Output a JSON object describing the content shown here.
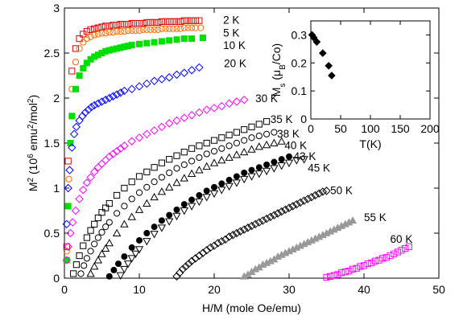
{
  "chart_data": [
    {
      "type": "scatter",
      "xlabel": "H/M (mole Oe/emu)",
      "ylabel_main": "M",
      "ylabel_sup": "2",
      "ylabel_units": " (10",
      "ylabel_units_sup": "6",
      "ylabel_units_tail": " emu",
      "ylabel_units_sup2": "2",
      "ylabel_units_tail2": "/mol",
      "ylabel_units_sup3": "2",
      "ylabel_units_close": ")",
      "xlim": [
        0,
        50
      ],
      "ylim": [
        0,
        3
      ],
      "xticks": [
        0,
        10,
        20,
        30,
        40,
        50
      ],
      "yticks": [
        0,
        0.5,
        1,
        1.5,
        2,
        2.5,
        3
      ],
      "xtick_labels": [
        "0",
        "10",
        "20",
        "30",
        "40",
        "50"
      ],
      "ytick_labels": [
        "0",
        "0.5",
        "1",
        "1.5",
        "2",
        "2.5",
        "3"
      ],
      "series": [
        {
          "name": "2 K",
          "marker": "square-open",
          "color": "#e00000",
          "x": [
            0.3,
            0.5,
            1.0,
            1.5,
            2.0,
            2.5,
            3.0,
            3.5,
            4.0,
            4.5,
            5.0,
            5.5,
            6.0,
            6.5,
            7.0,
            7.5,
            8.0,
            8.5,
            9.0,
            9.5,
            10.0,
            10.5,
            11.0,
            11.5,
            12.0,
            12.5,
            13.0,
            13.5,
            14.0,
            14.5,
            15.0,
            15.5,
            16.0,
            16.5,
            17.0,
            17.5,
            18.0
          ],
          "y": [
            0.35,
            1.3,
            2.3,
            2.55,
            2.66,
            2.71,
            2.74,
            2.76,
            2.77,
            2.78,
            2.79,
            2.8,
            2.8,
            2.81,
            2.81,
            2.82,
            2.82,
            2.82,
            2.83,
            2.83,
            2.83,
            2.83,
            2.84,
            2.84,
            2.84,
            2.84,
            2.85,
            2.85,
            2.85,
            2.85,
            2.85,
            2.85,
            2.86,
            2.86,
            2.86,
            2.86,
            2.86
          ]
        },
        {
          "name": "5 K",
          "marker": "circle-open",
          "color": "#ff6a00",
          "x": [
            0.3,
            0.6,
            1.0,
            1.5,
            2.0,
            2.5,
            3.0,
            3.5,
            4.0,
            4.5,
            5.0,
            5.5,
            6.0,
            6.5,
            7.0,
            7.5,
            8.0,
            8.5,
            9.0,
            9.5,
            10.0,
            10.5,
            11.0,
            11.5,
            12.0,
            12.5,
            13.0,
            13.5,
            14.0,
            14.5,
            15.0,
            15.5,
            16.0,
            16.5,
            17.0,
            17.5,
            18.2
          ],
          "y": [
            0.3,
            1.1,
            2.1,
            2.4,
            2.55,
            2.62,
            2.66,
            2.68,
            2.7,
            2.71,
            2.72,
            2.72,
            2.73,
            2.73,
            2.74,
            2.74,
            2.74,
            2.75,
            2.75,
            2.75,
            2.75,
            2.76,
            2.76,
            2.76,
            2.76,
            2.76,
            2.77,
            2.77,
            2.77,
            2.77,
            2.77,
            2.77,
            2.78,
            2.78,
            2.78,
            2.78,
            2.78
          ]
        },
        {
          "name": "10 K",
          "marker": "square-filled",
          "color": "#00e000",
          "x": [
            0.3,
            0.5,
            0.8,
            1.0,
            1.5,
            2.0,
            2.5,
            3.0,
            3.5,
            4.0,
            4.5,
            5.0,
            5.5,
            6.0,
            6.5,
            7.0,
            7.5,
            8.0,
            8.5,
            9.0,
            10.0,
            11.0,
            12.0,
            13.0,
            14.0,
            15.0,
            16.0,
            17.0,
            18.5
          ],
          "y": [
            0.2,
            0.8,
            1.5,
            1.8,
            2.1,
            2.25,
            2.33,
            2.39,
            2.43,
            2.46,
            2.48,
            2.5,
            2.52,
            2.53,
            2.54,
            2.55,
            2.56,
            2.57,
            2.58,
            2.59,
            2.6,
            2.61,
            2.62,
            2.63,
            2.64,
            2.65,
            2.66,
            2.66,
            2.67
          ]
        },
        {
          "name": "20 K",
          "marker": "diamond-open",
          "color": "#0000ff",
          "x": [
            0.3,
            0.5,
            0.7,
            1.0,
            1.3,
            1.6,
            2.0,
            2.4,
            2.8,
            3.2,
            3.6,
            4.0,
            4.5,
            5.0,
            5.5,
            6.0,
            6.5,
            7.0,
            7.5,
            8.0,
            9.0,
            10.0,
            11.0,
            12.0,
            13.0,
            14.0,
            15.0,
            16.0,
            17.0,
            18.0
          ],
          "y": [
            0.6,
            1.0,
            1.2,
            1.45,
            1.6,
            1.68,
            1.75,
            1.8,
            1.84,
            1.87,
            1.9,
            1.92,
            1.94,
            1.96,
            1.98,
            2.0,
            2.02,
            2.04,
            2.06,
            2.08,
            2.1,
            2.13,
            2.16,
            2.19,
            2.21,
            2.23,
            2.26,
            2.28,
            2.31,
            2.34
          ]
        },
        {
          "name": "30 K",
          "marker": "diamond-open",
          "color": "#ff00ff",
          "x": [
            0.3,
            0.5,
            0.8,
            1.1,
            1.5,
            2.0,
            2.5,
            3.0,
            3.5,
            4.0,
            4.5,
            5.0,
            5.5,
            6.0,
            6.5,
            7.0,
            7.5,
            8.0,
            9.0,
            10.0,
            11.0,
            12.0,
            13.0,
            14.0,
            15.0,
            16.0,
            17.0,
            18.0,
            19.0,
            20.0,
            21.0,
            22.0,
            23.0,
            24.0
          ],
          "y": [
            0.2,
            0.35,
            0.5,
            0.62,
            0.75,
            0.88,
            0.98,
            1.06,
            1.12,
            1.18,
            1.23,
            1.27,
            1.31,
            1.35,
            1.38,
            1.41,
            1.44,
            1.47,
            1.52,
            1.56,
            1.6,
            1.64,
            1.68,
            1.72,
            1.75,
            1.78,
            1.81,
            1.84,
            1.87,
            1.89,
            1.91,
            1.94,
            1.96,
            1.98
          ]
        },
        {
          "name": "35 K",
          "marker": "square-open",
          "color": "#000000",
          "x": [
            1.2,
            1.6,
            2.0,
            2.5,
            3.0,
            3.5,
            4.0,
            4.5,
            5.0,
            5.5,
            6.0,
            7.0,
            8.0,
            9.0,
            10.0,
            11.0,
            12.0,
            13.0,
            14.0,
            15.0,
            16.0,
            17.0,
            18.0,
            19.0,
            20.0,
            21.0,
            22.0,
            23.0,
            24.0,
            25.0,
            26.0,
            27.0
          ],
          "y": [
            0.05,
            0.15,
            0.25,
            0.36,
            0.45,
            0.53,
            0.6,
            0.67,
            0.73,
            0.78,
            0.83,
            0.92,
            1.0,
            1.07,
            1.13,
            1.18,
            1.23,
            1.28,
            1.32,
            1.36,
            1.4,
            1.44,
            1.47,
            1.5,
            1.53,
            1.56,
            1.59,
            1.62,
            1.65,
            1.68,
            1.71,
            1.74
          ]
        },
        {
          "name": "38 K",
          "marker": "circle-open",
          "color": "#000000",
          "x": [
            2.2,
            2.6,
            3.0,
            3.5,
            4.0,
            4.5,
            5.0,
            5.5,
            6.0,
            7.0,
            8.0,
            9.0,
            10.0,
            11.0,
            12.0,
            13.0,
            14.0,
            15.0,
            16.0,
            17.0,
            18.0,
            19.0,
            20.0,
            21.0,
            22.0,
            23.0,
            24.0,
            25.0,
            26.0,
            27.0,
            28.0
          ],
          "y": [
            0.05,
            0.14,
            0.22,
            0.3,
            0.38,
            0.45,
            0.51,
            0.57,
            0.62,
            0.72,
            0.8,
            0.88,
            0.95,
            1.01,
            1.07,
            1.12,
            1.17,
            1.22,
            1.26,
            1.3,
            1.34,
            1.38,
            1.41,
            1.44,
            1.47,
            1.5,
            1.53,
            1.56,
            1.58,
            1.6,
            1.62
          ]
        },
        {
          "name": "40 K",
          "marker": "triangle-up-open",
          "color": "#000000",
          "x": [
            3.5,
            4.0,
            4.5,
            5.0,
            5.5,
            6.0,
            7.0,
            8.0,
            9.0,
            10.0,
            11.0,
            12.0,
            13.0,
            14.0,
            15.0,
            16.0,
            17.0,
            18.0,
            19.0,
            20.0,
            21.0,
            22.0,
            23.0,
            24.0,
            25.0,
            26.0,
            27.0,
            28.0,
            29.0
          ],
          "y": [
            0.05,
            0.13,
            0.2,
            0.27,
            0.33,
            0.39,
            0.5,
            0.6,
            0.68,
            0.76,
            0.83,
            0.9,
            0.96,
            1.01,
            1.06,
            1.11,
            1.16,
            1.2,
            1.24,
            1.28,
            1.31,
            1.34,
            1.37,
            1.4,
            1.43,
            1.46,
            1.48,
            1.5,
            1.52
          ]
        },
        {
          "name": "43 K",
          "marker": "circle-filled",
          "color": "#000000",
          "x": [
            6.0,
            6.6,
            7.2,
            8.0,
            9.0,
            10.0,
            11.0,
            12.0,
            13.0,
            14.0,
            15.0,
            16.0,
            17.0,
            18.0,
            19.0,
            20.0,
            21.0,
            22.0,
            23.0,
            24.0,
            25.0,
            26.0,
            27.0,
            28.0,
            29.0,
            30.0
          ],
          "y": [
            0.02,
            0.09,
            0.16,
            0.24,
            0.34,
            0.42,
            0.5,
            0.57,
            0.64,
            0.7,
            0.76,
            0.82,
            0.87,
            0.92,
            0.97,
            1.01,
            1.05,
            1.09,
            1.13,
            1.17,
            1.2,
            1.23,
            1.26,
            1.29,
            1.32,
            1.35
          ]
        },
        {
          "name": "45 K",
          "marker": "triangle-down-open",
          "color": "#000000",
          "x": [
            7.5,
            8.0,
            8.5,
            9.0,
            9.5,
            10.0,
            11.0,
            12.0,
            13.0,
            14.0,
            15.0,
            16.0,
            17.0,
            18.0,
            19.0,
            20.0,
            21.0,
            22.0,
            23.0,
            24.0,
            25.0,
            26.0,
            27.0,
            28.0,
            29.0,
            30.0,
            31.0,
            32.0
          ],
          "y": [
            0.03,
            0.1,
            0.16,
            0.22,
            0.27,
            0.32,
            0.41,
            0.49,
            0.56,
            0.63,
            0.69,
            0.75,
            0.8,
            0.85,
            0.9,
            0.94,
            0.98,
            1.02,
            1.06,
            1.1,
            1.13,
            1.16,
            1.19,
            1.22,
            1.25,
            1.28,
            1.31,
            1.32
          ]
        },
        {
          "name": "50 K",
          "marker": "diamond-open",
          "color": "#000000",
          "x": [
            15.0,
            15.4,
            15.8,
            16.2,
            16.6,
            17.0,
            17.5,
            18.0,
            18.5,
            19.0,
            19.5,
            20.0,
            20.5,
            21.0,
            21.5,
            22.0,
            22.5,
            23.0,
            23.5,
            24.0,
            24.5,
            25.0,
            25.5,
            26.0,
            26.5,
            27.0,
            27.5,
            28.0,
            28.5,
            29.0,
            29.5,
            30.0,
            30.5,
            31.0,
            31.5,
            32.0,
            32.5,
            33.0,
            33.5,
            34.0,
            34.5,
            35.0
          ],
          "y": [
            0.02,
            0.06,
            0.1,
            0.13,
            0.16,
            0.19,
            0.22,
            0.25,
            0.28,
            0.31,
            0.34,
            0.36,
            0.39,
            0.41,
            0.43,
            0.46,
            0.48,
            0.5,
            0.52,
            0.54,
            0.56,
            0.58,
            0.6,
            0.62,
            0.64,
            0.66,
            0.68,
            0.7,
            0.72,
            0.74,
            0.76,
            0.78,
            0.8,
            0.82,
            0.84,
            0.86,
            0.88,
            0.9,
            0.92,
            0.94,
            0.96,
            0.97
          ]
        },
        {
          "name": "55 K",
          "marker": "triangle-up-filled",
          "color": "#999999",
          "x": [
            24.0,
            24.5,
            25.0,
            25.5,
            26.0,
            26.5,
            27.0,
            27.5,
            28.0,
            28.5,
            29.0,
            29.5,
            30.0,
            30.5,
            31.0,
            31.5,
            32.0,
            32.5,
            33.0,
            33.5,
            34.0,
            34.5,
            35.0,
            35.5,
            36.0,
            36.5,
            37.0,
            37.5,
            38.0,
            38.5
          ],
          "y": [
            0.02,
            0.04,
            0.07,
            0.1,
            0.12,
            0.15,
            0.17,
            0.19,
            0.21,
            0.24,
            0.26,
            0.28,
            0.3,
            0.32,
            0.34,
            0.36,
            0.38,
            0.4,
            0.42,
            0.44,
            0.46,
            0.48,
            0.5,
            0.52,
            0.54,
            0.56,
            0.58,
            0.6,
            0.62,
            0.64
          ]
        },
        {
          "name": "60 K",
          "marker": "square-open",
          "color": "#ff00ff",
          "x": [
            35.0,
            35.5,
            36.0,
            36.5,
            37.0,
            37.5,
            38.0,
            38.5,
            39.0,
            39.5,
            40.0,
            40.5,
            41.0,
            41.5,
            42.0,
            42.5,
            43.0,
            43.5,
            44.0,
            44.5,
            45.0,
            45.5,
            46.0
          ],
          "y": [
            0.01,
            0.02,
            0.03,
            0.04,
            0.06,
            0.07,
            0.08,
            0.1,
            0.11,
            0.13,
            0.14,
            0.16,
            0.17,
            0.19,
            0.2,
            0.22,
            0.23,
            0.25,
            0.27,
            0.29,
            0.31,
            0.33,
            0.35
          ]
        }
      ],
      "series_labels": [
        {
          "text": "2 K",
          "x": 21.2,
          "y": 2.86
        },
        {
          "text": "5 K",
          "x": 21.2,
          "y": 2.72
        },
        {
          "text": "10 K",
          "x": 21.2,
          "y": 2.58
        },
        {
          "text": "20 K",
          "x": 21.3,
          "y": 2.38
        },
        {
          "text": "30 K",
          "x": 25.5,
          "y": 1.99
        },
        {
          "text": "35 K",
          "x": 27.5,
          "y": 1.76
        },
        {
          "text": "38 K",
          "x": 28.4,
          "y": 1.6
        },
        {
          "text": "40 K",
          "x": 29.4,
          "y": 1.47
        },
        {
          "text": "43 K",
          "x": 30.6,
          "y": 1.35
        },
        {
          "text": "45 K",
          "x": 32.5,
          "y": 1.22
        },
        {
          "text": "50 K",
          "x": 35.5,
          "y": 0.97
        },
        {
          "text": "55 K",
          "x": 40.0,
          "y": 0.67
        },
        {
          "text": "60 K",
          "x": 43.5,
          "y": 0.43
        }
      ]
    },
    {
      "type": "scatter",
      "inset": true,
      "xlabel": "T(K)",
      "ylabel_main": "M",
      "ylabel_sub": "s",
      "ylabel_units": " (μ",
      "ylabel_units_sub": "B",
      "ylabel_units_tail": "/Co)",
      "xlim": [
        0,
        200
      ],
      "ylim": [
        0,
        0.35
      ],
      "xticks": [
        0,
        50,
        100,
        150,
        200
      ],
      "yticks": [
        0,
        0.1,
        0.2,
        0.3
      ],
      "xtick_labels": [
        "0",
        "50",
        "100",
        "150",
        "200"
      ],
      "ytick_labels": [
        "0",
        "0.1",
        "0.2",
        "0.3"
      ],
      "series": [
        {
          "name": "",
          "marker": "diamond-filled",
          "color": "#000000",
          "x": [
            2,
            5,
            10,
            20,
            30,
            35
          ],
          "y": [
            0.3,
            0.29,
            0.275,
            0.235,
            0.19,
            0.155
          ]
        }
      ]
    }
  ]
}
